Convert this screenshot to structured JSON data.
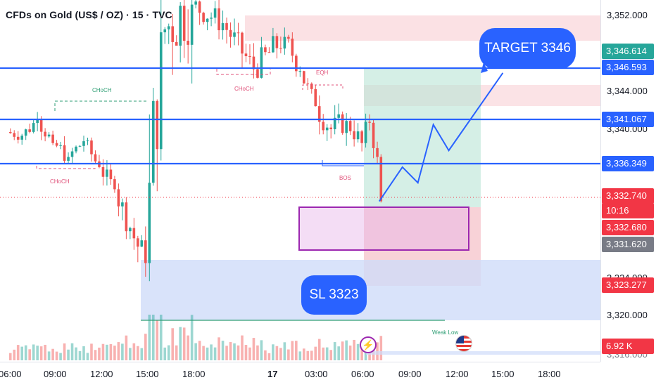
{
  "header": {
    "title": "CFDs on Gold (US$ / OZ) · 15 · TVC"
  },
  "colors": {
    "up_candle": "#26a69a",
    "down_candle": "#ef5350",
    "blue_line": "#2962ff",
    "entry_zone": "#9c27b0",
    "take_profit_zone": "#26a69a",
    "stop_loss_zone": "#ef5350",
    "demand_zone": "#4d7ef7",
    "supply_zone": "#f19aa3"
  },
  "price_axis": {
    "labels": [
      "3,352.000",
      "3,344.000",
      "3,340.000",
      "3,324.000",
      "3,320.000"
    ],
    "partial_label": "3,316.000",
    "badges": [
      {
        "text": "3,346.614",
        "color": "#26a69a",
        "kind": "gray-green"
      },
      {
        "text": "3,346.593",
        "color": "#2962ff",
        "kind": "blue"
      },
      {
        "text": "3,341.067",
        "color": "#2962ff",
        "kind": "blue"
      },
      {
        "text": "3,336.349",
        "color": "#2962ff",
        "kind": "blue"
      },
      {
        "text": "3,332.740",
        "color": "#f23645",
        "kind": "red"
      },
      {
        "text": "10:16",
        "color": "#f23645",
        "kind": "red"
      },
      {
        "text": "3,332.680",
        "color": "#f23645",
        "kind": "red"
      },
      {
        "text": "3,331.620",
        "color": "#787b86",
        "kind": "gray"
      },
      {
        "text": "3,323.277",
        "color": "#f23645",
        "kind": "red"
      },
      {
        "text": "6.92 K",
        "color": "#f23645",
        "kind": "red"
      }
    ]
  },
  "time_axis": {
    "labels": [
      "06:00",
      "09:00",
      "12:00",
      "15:00",
      "18:00",
      "17",
      "03:00",
      "06:00",
      "09:00",
      "12:00",
      "15:00",
      "18:00"
    ]
  },
  "annotations": {
    "target": "TARGET 3346",
    "stop_loss": "SL 3323",
    "choch_top": "CHoCH",
    "choch_left": "CHoCH",
    "choch_mid": "CHoCH",
    "eqh": "EQH",
    "bos": "BOS",
    "weak_low": "Weak Low",
    "event_lightning_icon": "lightning-icon",
    "event_flag_icon": "us-flag-icon"
  },
  "chart_data": {
    "type": "candlestick",
    "title": "CFDs on Gold (US$ / OZ) · 15 · TVC",
    "timeframe": "15",
    "ylim": [
      3316.0,
      3354.5
    ],
    "horizontal_levels": [
      3346.593,
      3341.067,
      3336.349
    ],
    "trade_setup": {
      "entry": 3332.74,
      "target": 3346.6,
      "stop_loss": 3323.0,
      "projected_path": [
        [
          "2025-06-17 06:00",
          3332.7
        ],
        [
          "2025-06-17 07:30",
          3336.4
        ],
        [
          "2025-06-17 08:30",
          3334.7
        ],
        [
          "2025-06-17 09:30",
          3341.0
        ],
        [
          "2025-06-17 10:30",
          3338.2
        ],
        [
          "2025-06-17 14:00",
          3346.6
        ]
      ]
    },
    "ohlc_approx": [
      {
        "t": "2025-06-16 06:00",
        "o": 3340.2,
        "h": 3341.4,
        "l": 3338.6,
        "c": 3339.8
      },
      {
        "t": "2025-06-16 07:00",
        "o": 3339.8,
        "h": 3342.6,
        "l": 3338.9,
        "c": 3341.5
      },
      {
        "t": "2025-06-16 08:00",
        "o": 3341.5,
        "h": 3342.3,
        "l": 3338.5,
        "c": 3339.0
      },
      {
        "t": "2025-06-16 09:00",
        "o": 3339.0,
        "h": 3341.0,
        "l": 3336.8,
        "c": 3337.5
      },
      {
        "t": "2025-06-16 10:00",
        "o": 3337.5,
        "h": 3339.8,
        "l": 3336.0,
        "c": 3339.2
      },
      {
        "t": "2025-06-16 11:00",
        "o": 3339.2,
        "h": 3339.6,
        "l": 3335.8,
        "c": 3336.4
      },
      {
        "t": "2025-06-16 12:00",
        "o": 3336.4,
        "h": 3337.4,
        "l": 3333.0,
        "c": 3334.0
      },
      {
        "t": "2025-06-16 13:00",
        "o": 3334.0,
        "h": 3334.9,
        "l": 3328.6,
        "c": 3329.8
      },
      {
        "t": "2025-06-16 14:00",
        "o": 3329.8,
        "h": 3330.9,
        "l": 3322.4,
        "c": 3326.0
      },
      {
        "t": "2025-06-16 15:00",
        "o": 3326.0,
        "h": 3356.0,
        "l": 3322.0,
        "c": 3351.0
      },
      {
        "t": "2025-06-16 16:00",
        "o": 3351.0,
        "h": 3356.0,
        "l": 3338.0,
        "c": 3354.0
      },
      {
        "t": "2025-06-16 18:00",
        "o": 3354.0,
        "h": 3356.0,
        "l": 3350.0,
        "c": 3352.0
      },
      {
        "t": "2025-06-16 20:00",
        "o": 3352.0,
        "h": 3352.6,
        "l": 3346.0,
        "c": 3347.0
      },
      {
        "t": "2025-06-16 22:00",
        "o": 3347.0,
        "h": 3352.8,
        "l": 3346.0,
        "c": 3350.5
      },
      {
        "t": "2025-06-17 00:00",
        "o": 3350.5,
        "h": 3351.0,
        "l": 3346.0,
        "c": 3346.8
      },
      {
        "t": "2025-06-17 01:00",
        "o": 3346.8,
        "h": 3347.0,
        "l": 3342.0,
        "c": 3343.0
      },
      {
        "t": "2025-06-17 02:00",
        "o": 3343.0,
        "h": 3344.4,
        "l": 3338.0,
        "c": 3340.5
      },
      {
        "t": "2025-06-17 03:00",
        "o": 3340.5,
        "h": 3344.0,
        "l": 3338.2,
        "c": 3341.4
      },
      {
        "t": "2025-06-17 04:00",
        "o": 3341.4,
        "h": 3342.6,
        "l": 3337.5,
        "c": 3339.0
      },
      {
        "t": "2025-06-17 05:00",
        "o": 3339.0,
        "h": 3342.8,
        "l": 3337.0,
        "c": 3341.2
      },
      {
        "t": "2025-06-17 05:30",
        "o": 3341.2,
        "h": 3341.5,
        "l": 3336.2,
        "c": 3337.5
      },
      {
        "t": "2025-06-17 06:00",
        "o": 3337.5,
        "h": 3337.8,
        "l": 3331.6,
        "c": 3332.7
      }
    ]
  }
}
